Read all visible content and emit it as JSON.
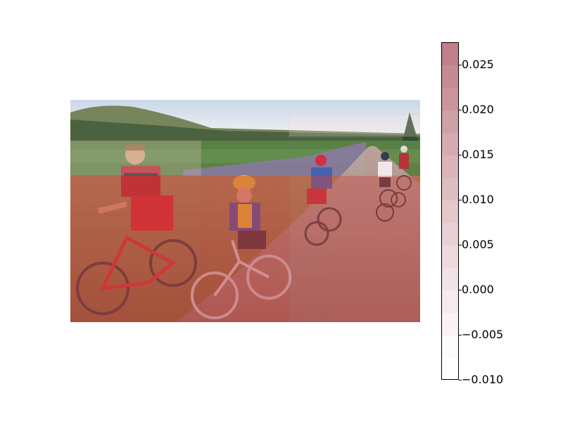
{
  "chart_data": {
    "type": "heatmap",
    "title": "",
    "xlabel": "",
    "ylabel": "",
    "colorbar": {
      "ticks": [
        "0.025",
        "0.020",
        "0.015",
        "0.010",
        "0.005",
        "0.000",
        "−0.005",
        "−0.010"
      ],
      "tick_values": [
        0.025,
        0.02,
        0.015,
        0.01,
        0.005,
        0.0,
        -0.005,
        -0.01
      ],
      "range": [
        -0.01,
        0.0275
      ],
      "levels": 15,
      "colormap": "white-to-red",
      "color_low": "#ffffff",
      "color_high": "#c0808a"
    },
    "overlay_cells": [
      {
        "name": "left-rider-region",
        "value": 0.02
      },
      {
        "name": "center-rider-region",
        "value": 0.022
      },
      {
        "name": "right-riders-region",
        "value": 0.015
      },
      {
        "name": "background-region",
        "value": 0.0
      }
    ],
    "image_description_tags": [
      "cyclists",
      "dirt road",
      "hills",
      "purple flowers"
    ]
  },
  "colors": {
    "overlay_red": "#d04040",
    "region_border": "#d03030"
  }
}
